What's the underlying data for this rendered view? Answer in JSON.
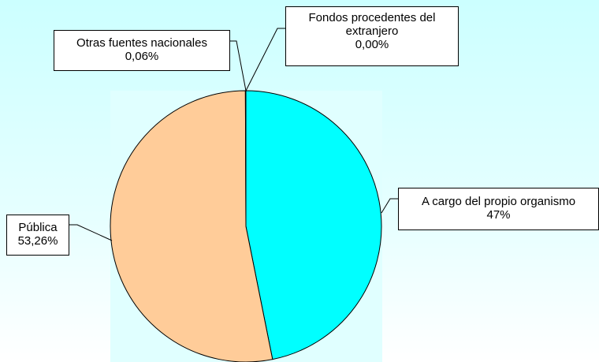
{
  "chart_data": {
    "type": "pie",
    "categories": [
      "A cargo del propio organismo",
      "Pública",
      "Otras fuentes nacionales",
      "Fondos procedentes del extranjero"
    ],
    "values": [
      47,
      53.26,
      0.06,
      0
    ],
    "value_labels": [
      "47%",
      "53,26%",
      "0,06%",
      "0,00%"
    ],
    "colors": [
      "#00ffff",
      "#ffcc99",
      "#9999ff",
      "#993366"
    ]
  }
}
